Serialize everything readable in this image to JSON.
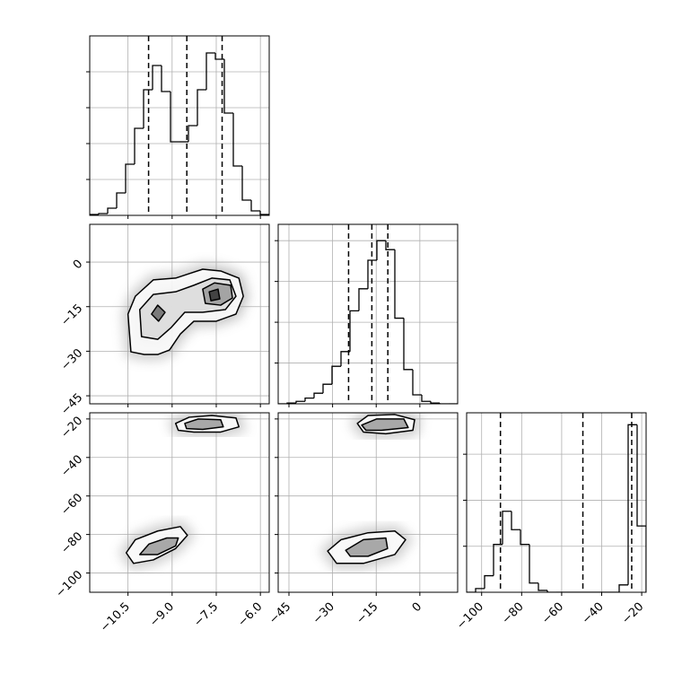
{
  "chart_data": [
    {
      "type": "histogram",
      "color": "#000000",
      "bins": [
        -11.8,
        -11.495,
        -11.19,
        -10.885,
        -10.58,
        -10.275,
        -9.97,
        -9.665,
        -9.36,
        -9.055,
        -8.75,
        -8.445,
        -8.14,
        -7.835,
        -7.53,
        -7.225,
        -6.92,
        -6.615,
        -6.31,
        -6.005,
        -5.7
      ],
      "counts": [
        1,
        2,
        8,
        25,
        57,
        97,
        140,
        167,
        138,
        82,
        82,
        100,
        140,
        181,
        174,
        114,
        55,
        17,
        5,
        1
      ],
      "quantiles": [
        -9.8,
        -8.5,
        -7.3
      ],
      "xlim": [
        -11.8,
        -5.7
      ],
      "ylim": [
        0,
        200
      ],
      "xticks": [
        {
          "value": -10.5,
          "label": "−10.5"
        },
        {
          "value": -9.0,
          "label": "−9.0"
        },
        {
          "value": -7.5,
          "label": "−7.5"
        },
        {
          "value": -6.0,
          "label": "−6.0"
        }
      ],
      "yticks": [
        40,
        80,
        120,
        160
      ],
      "grid": true
    },
    {
      "type": "hist2d",
      "color": "#000000",
      "xlim": [
        -11.8,
        -5.7
      ],
      "ylim": [
        -47.7,
        12.7
      ],
      "xticks": [
        {
          "value": -10.5,
          "label": "−10.5"
        },
        {
          "value": -9.0,
          "label": "−9.0"
        },
        {
          "value": -7.5,
          "label": "−7.5"
        },
        {
          "value": -6.0,
          "label": "−6.0"
        }
      ],
      "yticks": [
        0,
        {
          "value": -15,
          "label": "−15"
        },
        {
          "value": -30,
          "label": "−30"
        },
        {
          "value": -45,
          "label": "−45"
        }
      ],
      "grid": true,
      "contours": [
        {
          "x": [
            -10.4,
            -10.5,
            -10.25,
            -9.64,
            -8.88,
            -8.42,
            -7.96,
            -7.35,
            -6.73,
            -6.58,
            -6.83,
            -7.5,
            -8.26,
            -8.72,
            -9.09,
            -9.49,
            -9.95
          ],
          "y": [
            -30.2,
            -17.5,
            -11.5,
            -6.0,
            -5.4,
            -3.9,
            -2.4,
            -3.0,
            -5.4,
            -11.5,
            -17.5,
            -19.9,
            -19.9,
            -24.2,
            -29.6,
            -31.1,
            -31.1
          ]
        },
        {
          "x": [
            -10.04,
            -10.1,
            -9.64,
            -8.88,
            -8.26,
            -7.65,
            -7.04,
            -6.83,
            -7.19,
            -7.96,
            -8.57,
            -9.03,
            -9.49
          ],
          "y": [
            -25.1,
            -16.0,
            -10.9,
            -10.0,
            -7.8,
            -5.4,
            -6.0,
            -11.5,
            -16.0,
            -16.9,
            -16.9,
            -22.0,
            -26.0
          ]
        },
        {
          "x": [
            -7.96,
            -7.56,
            -7.01,
            -6.95,
            -7.35,
            -7.87
          ],
          "y": [
            -9.1,
            -7.0,
            -7.8,
            -12.1,
            -14.5,
            -13.9
          ]
        },
        {
          "x": [
            -9.7,
            -9.49,
            -9.24,
            -9.46
          ],
          "y": [
            -17.5,
            -14.5,
            -16.9,
            -19.9
          ]
        },
        {
          "x": [
            -7.74,
            -7.44,
            -7.38,
            -7.68
          ],
          "y": [
            -10.0,
            -9.1,
            -12.4,
            -13.0
          ]
        }
      ]
    },
    {
      "type": "histogram",
      "color": "#000000",
      "bins": [
        -48.7,
        -45.615,
        -42.53,
        -39.445,
        -36.36,
        -33.275,
        -30.19,
        -27.105,
        -24.02,
        -20.935,
        -17.85,
        -14.765,
        -11.68,
        -8.595,
        -5.51,
        -2.425,
        0.66,
        3.745,
        6.83,
        9.915,
        13.0
      ],
      "counts": [
        0,
        1,
        3,
        7,
        13,
        24,
        46,
        64,
        114,
        141,
        176,
        200,
        189,
        105,
        42,
        11,
        3,
        1,
        0,
        0
      ],
      "quantiles": [
        -24.5,
        -16.5,
        -11
      ],
      "xlim": [
        -48.7,
        13.0
      ],
      "ylim": [
        0,
        220
      ],
      "xticks": [
        {
          "value": -45,
          "label": "−45"
        },
        {
          "value": -30,
          "label": "−30"
        },
        {
          "value": -15,
          "label": "−15"
        },
        0
      ],
      "yticks": [
        50,
        100,
        150,
        200
      ],
      "grid": true
    },
    {
      "type": "hist2d",
      "color": "#000000",
      "xlim": [
        -11.8,
        -5.7
      ],
      "ylim": [
        -110,
        -16.8
      ],
      "xticks": [
        {
          "value": -10.5,
          "label": "−10.5"
        },
        {
          "value": -9.0,
          "label": "−9.0"
        },
        {
          "value": -7.5,
          "label": "−7.5"
        },
        {
          "value": -6.0,
          "label": "−6.0"
        }
      ],
      "yticks": [
        {
          "value": -20,
          "label": "−20"
        },
        {
          "value": -40,
          "label": "−40"
        },
        {
          "value": -60,
          "label": "−60"
        },
        {
          "value": -80,
          "label": "−80"
        },
        {
          "value": -100,
          "label": "−100"
        }
      ],
      "grid": true,
      "contours": [
        {
          "x": [
            -8.88,
            -8.42,
            -7.65,
            -6.83,
            -6.73,
            -7.35,
            -8.26,
            -8.79
          ],
          "y": [
            -22.3,
            -19.1,
            -18.2,
            -19.5,
            -24.1,
            -26.8,
            -26.8,
            -25.9
          ]
        },
        {
          "x": [
            -10.56,
            -10.25,
            -9.49,
            -8.72,
            -8.48,
            -8.88,
            -9.64,
            -10.31
          ],
          "y": [
            -89.5,
            -82.7,
            -78.2,
            -75.9,
            -80.4,
            -87.3,
            -93.2,
            -95.0
          ]
        },
        {
          "x": [
            -8.57,
            -8.11,
            -7.35,
            -7.26,
            -7.96,
            -8.51
          ],
          "y": [
            -22.3,
            -20.0,
            -20.4,
            -24.1,
            -25.4,
            -25.0
          ]
        },
        {
          "x": [
            -10.1,
            -9.79,
            -9.18,
            -8.79,
            -8.88,
            -9.49
          ],
          "y": [
            -90.4,
            -85.0,
            -81.8,
            -81.8,
            -85.9,
            -90.4
          ]
        }
      ]
    },
    {
      "type": "hist2d",
      "color": "#000000",
      "xlim": [
        -48.7,
        13.0
      ],
      "ylim": [
        -110,
        -16.8
      ],
      "xticks": [
        {
          "value": -45,
          "label": "−45"
        },
        {
          "value": -30,
          "label": "−30"
        },
        {
          "value": -15,
          "label": "−15"
        },
        0
      ],
      "yticks": [
        -20,
        -40,
        -60,
        -80,
        -100
      ],
      "grid": true,
      "contours": [
        {
          "x": [
            -21.5,
            -17.8,
            -8.6,
            -1.8,
            -2.4,
            -11.7,
            -19.4
          ],
          "y": [
            -22.3,
            -18.2,
            -17.7,
            -20.4,
            -25.9,
            -27.7,
            -26.8
          ]
        },
        {
          "x": [
            -31.7,
            -27.1,
            -17.8,
            -8.6,
            -4.9,
            -8.6,
            -19.4,
            -28.6
          ],
          "y": [
            -88.6,
            -82.7,
            -79.1,
            -78.2,
            -82.7,
            -90.4,
            -95.0,
            -95.0
          ]
        },
        {
          "x": [
            -20.0,
            -14.8,
            -5.5,
            -4.0,
            -13.2,
            -18.5
          ],
          "y": [
            -23.2,
            -20.0,
            -20.0,
            -24.5,
            -25.9,
            -25.9
          ]
        },
        {
          "x": [
            -25.5,
            -19.4,
            -11.7,
            -11.1,
            -17.8,
            -23.9
          ],
          "y": [
            -88.2,
            -82.7,
            -81.8,
            -87.3,
            -91.3,
            -91.3
          ]
        }
      ]
    },
    {
      "type": "histogram",
      "color": "#000000",
      "bins": [
        -107.5,
        -103.015,
        -98.53,
        -94.045,
        -89.56,
        -85.075,
        -80.59,
        -76.105,
        -71.62,
        -67.135,
        -62.65,
        -58.165,
        -53.68,
        -49.195,
        -44.71,
        -40.225,
        -35.74,
        -31.255,
        -26.77,
        -22.285,
        -17.8
      ],
      "counts": [
        0,
        4,
        18,
        52,
        88,
        68,
        52,
        10,
        2,
        0,
        0,
        0,
        0,
        0,
        0,
        0,
        0,
        8,
        182,
        72
      ],
      "quantiles": [
        -90.6,
        -49.4,
        -25
      ],
      "xlim": [
        -107.5,
        -17.8
      ],
      "ylim": [
        0,
        195
      ],
      "xticks": [
        {
          "value": -100,
          "label": "−100"
        },
        {
          "value": -80,
          "label": "−80"
        },
        {
          "value": -60,
          "label": "−60"
        },
        {
          "value": -40,
          "label": "−40"
        },
        {
          "value": -20,
          "label": "−20"
        }
      ],
      "yticks": [
        50,
        100,
        150
      ],
      "grid": true
    }
  ]
}
